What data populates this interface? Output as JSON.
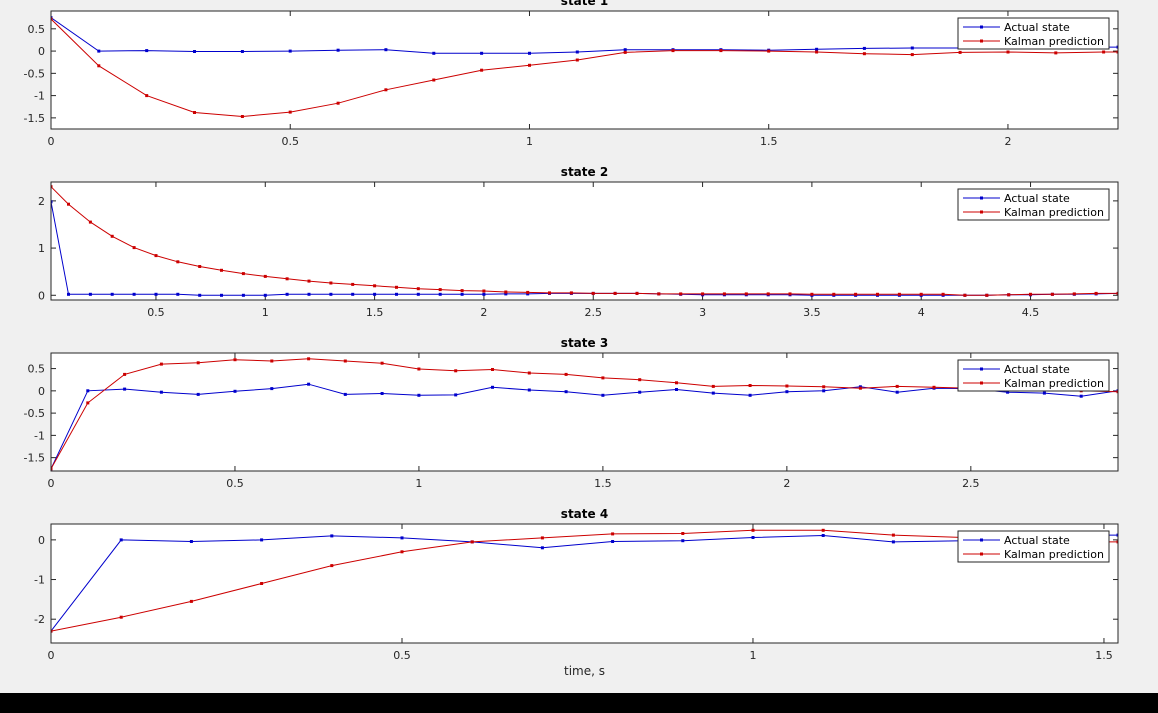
{
  "chart_data": [
    {
      "type": "line",
      "title": "state 1",
      "xlabel": "",
      "ylabel": "",
      "xlim": [
        0,
        2.23
      ],
      "ylim": [
        -1.75,
        0.9
      ],
      "xticks": [
        0,
        0.5,
        1,
        1.5,
        2
      ],
      "xtick_labels": [
        "0",
        "0.5",
        "1",
        "1.5",
        "2"
      ],
      "yticks": [
        0.5,
        0,
        -0.5,
        -1,
        -1.5
      ],
      "ytick_labels": [
        "0.5",
        "0",
        "-0.5",
        "-1",
        "-1.5"
      ],
      "legend": "top-right",
      "series": [
        {
          "name": "Actual state",
          "color": "#0000cc",
          "x": [
            0,
            0.1,
            0.2,
            0.3,
            0.4,
            0.5,
            0.6,
            0.7,
            0.8,
            0.9,
            1.0,
            1.1,
            1.2,
            1.3,
            1.4,
            1.5,
            1.6,
            1.7,
            1.8,
            1.9,
            2.0,
            2.1,
            2.2,
            2.23
          ],
          "y": [
            0.75,
            0.0,
            0.01,
            -0.01,
            -0.01,
            0.0,
            0.02,
            0.03,
            -0.05,
            -0.05,
            -0.05,
            -0.02,
            0.03,
            0.03,
            0.03,
            0.02,
            0.04,
            0.06,
            0.07,
            0.07,
            0.08,
            0.09,
            0.09,
            0.09
          ]
        },
        {
          "name": "Kalman prediction",
          "color": "#cc0000",
          "x": [
            0,
            0.1,
            0.2,
            0.3,
            0.4,
            0.5,
            0.6,
            0.7,
            0.8,
            0.9,
            1.0,
            1.1,
            1.2,
            1.3,
            1.4,
            1.5,
            1.6,
            1.7,
            1.8,
            1.9,
            2.0,
            2.1,
            2.2,
            2.23
          ],
          "y": [
            0.72,
            -0.33,
            -1.0,
            -1.38,
            -1.47,
            -1.37,
            -1.17,
            -0.87,
            -0.65,
            -0.43,
            -0.32,
            -0.2,
            -0.03,
            0.01,
            0.01,
            0.0,
            -0.02,
            -0.06,
            -0.08,
            -0.03,
            -0.02,
            -0.04,
            -0.02,
            -0.02
          ]
        }
      ]
    },
    {
      "type": "line",
      "title": "state 2",
      "xlabel": "",
      "ylabel": "",
      "xlim": [
        0.02,
        4.9
      ],
      "ylim": [
        -0.1,
        2.4
      ],
      "xticks": [
        0.5,
        1,
        1.5,
        2,
        2.5,
        3,
        3.5,
        4,
        4.5
      ],
      "xtick_labels": [
        "0.5",
        "1",
        "1.5",
        "2",
        "2.5",
        "3",
        "3.5",
        "4",
        "4.5"
      ],
      "yticks": [
        2,
        1,
        0
      ],
      "ytick_labels": [
        "2",
        "1",
        "0"
      ],
      "legend": "top-right",
      "series": [
        {
          "name": "Actual state",
          "color": "#0000cc",
          "x": [
            0.02,
            0.1,
            0.2,
            0.3,
            0.4,
            0.5,
            0.6,
            0.7,
            0.8,
            0.9,
            1.0,
            1.1,
            1.2,
            1.3,
            1.4,
            1.5,
            1.6,
            1.7,
            1.8,
            1.9,
            2.0,
            2.1,
            2.2,
            2.3,
            2.4,
            2.5,
            2.6,
            2.7,
            2.8,
            2.9,
            3.0,
            3.1,
            3.2,
            3.3,
            3.4,
            3.5,
            3.6,
            3.7,
            3.8,
            3.9,
            4.0,
            4.1,
            4.2,
            4.3,
            4.4,
            4.5,
            4.6,
            4.7,
            4.8,
            4.9
          ],
          "y": [
            1.98,
            0.02,
            0.02,
            0.02,
            0.02,
            0.02,
            0.02,
            0.0,
            0.0,
            0.0,
            0.0,
            0.02,
            0.02,
            0.02,
            0.02,
            0.02,
            0.02,
            0.02,
            0.02,
            0.02,
            0.02,
            0.03,
            0.03,
            0.04,
            0.04,
            0.04,
            0.04,
            0.04,
            0.03,
            0.02,
            0.01,
            0.01,
            0.01,
            0.01,
            0.01,
            0.0,
            0.0,
            0.0,
            0.0,
            0.0,
            0.0,
            0.0,
            0.0,
            0.0,
            0.01,
            0.01,
            0.02,
            0.02,
            0.03,
            0.04
          ]
        },
        {
          "name": "Kalman prediction",
          "color": "#cc0000",
          "x": [
            0.02,
            0.1,
            0.2,
            0.3,
            0.4,
            0.5,
            0.6,
            0.7,
            0.8,
            0.9,
            1.0,
            1.1,
            1.2,
            1.3,
            1.4,
            1.5,
            1.6,
            1.7,
            1.8,
            1.9,
            2.0,
            2.1,
            2.2,
            2.3,
            2.4,
            2.5,
            2.6,
            2.7,
            2.8,
            2.9,
            3.0,
            3.1,
            3.2,
            3.3,
            3.4,
            3.5,
            3.6,
            3.7,
            3.8,
            3.9,
            4.0,
            4.1,
            4.2,
            4.3,
            4.4,
            4.5,
            4.6,
            4.7,
            4.8,
            4.9
          ],
          "y": [
            2.3,
            1.93,
            1.55,
            1.25,
            1.01,
            0.84,
            0.71,
            0.61,
            0.53,
            0.46,
            0.4,
            0.35,
            0.3,
            0.26,
            0.23,
            0.2,
            0.17,
            0.14,
            0.12,
            0.1,
            0.09,
            0.07,
            0.06,
            0.05,
            0.05,
            0.04,
            0.04,
            0.04,
            0.03,
            0.03,
            0.03,
            0.03,
            0.03,
            0.03,
            0.03,
            0.02,
            0.02,
            0.02,
            0.02,
            0.02,
            0.02,
            0.02,
            0.0,
            0.0,
            0.01,
            0.02,
            0.02,
            0.03,
            0.04,
            0.04
          ]
        }
      ]
    },
    {
      "type": "line",
      "title": "state 3",
      "xlabel": "",
      "ylabel": "",
      "xlim": [
        0,
        2.9
      ],
      "ylim": [
        -1.8,
        0.85
      ],
      "xticks": [
        0,
        0.5,
        1,
        1.5,
        2,
        2.5
      ],
      "xtick_labels": [
        "0",
        "0.5",
        "1",
        "1.5",
        "2",
        "2.5"
      ],
      "yticks": [
        0.5,
        0,
        -0.5,
        -1,
        -1.5
      ],
      "ytick_labels": [
        "0.5",
        "0",
        "-0.5",
        "-1",
        "-1.5"
      ],
      "legend": "top-right",
      "series": [
        {
          "name": "Actual state",
          "color": "#0000cc",
          "x": [
            0,
            0.1,
            0.2,
            0.3,
            0.4,
            0.5,
            0.6,
            0.7,
            0.8,
            0.9,
            1.0,
            1.1,
            1.2,
            1.3,
            1.4,
            1.5,
            1.6,
            1.7,
            1.8,
            1.9,
            2.0,
            2.1,
            2.2,
            2.3,
            2.4,
            2.5,
            2.6,
            2.7,
            2.8,
            2.9
          ],
          "y": [
            -1.75,
            0.0,
            0.04,
            -0.03,
            -0.08,
            -0.01,
            0.05,
            0.15,
            -0.08,
            -0.06,
            -0.1,
            -0.09,
            0.08,
            0.02,
            -0.02,
            -0.1,
            -0.03,
            0.03,
            -0.05,
            -0.1,
            -0.02,
            0.0,
            0.09,
            -0.03,
            0.06,
            0.05,
            -0.03,
            -0.05,
            -0.12,
            0.0
          ]
        },
        {
          "name": "Kalman prediction",
          "color": "#cc0000",
          "x": [
            0,
            0.1,
            0.2,
            0.3,
            0.4,
            0.5,
            0.6,
            0.7,
            0.8,
            0.9,
            1.0,
            1.1,
            1.2,
            1.3,
            1.4,
            1.5,
            1.6,
            1.7,
            1.8,
            1.9,
            2.0,
            2.1,
            2.2,
            2.3,
            2.4,
            2.5,
            2.6,
            2.7,
            2.8,
            2.9
          ],
          "y": [
            -1.75,
            -0.27,
            0.37,
            0.6,
            0.63,
            0.7,
            0.67,
            0.72,
            0.67,
            0.62,
            0.49,
            0.45,
            0.48,
            0.4,
            0.37,
            0.29,
            0.25,
            0.18,
            0.1,
            0.12,
            0.11,
            0.09,
            0.06,
            0.1,
            0.08,
            0.06,
            0.04,
            0.02,
            0.0,
            -0.02
          ]
        }
      ]
    },
    {
      "type": "line",
      "title": "state 4",
      "xlabel": "time, s",
      "ylabel": "",
      "xlim": [
        0,
        1.52
      ],
      "ylim": [
        -2.6,
        0.4
      ],
      "xticks": [
        0,
        0.5,
        1,
        1.5
      ],
      "xtick_labels": [
        "0",
        "0.5",
        "1",
        "1.5"
      ],
      "yticks": [
        0,
        -1,
        -2
      ],
      "ytick_labels": [
        "0",
        "-1",
        "-2"
      ],
      "legend": "top-right",
      "series": [
        {
          "name": "Actual state",
          "color": "#0000cc",
          "x": [
            0,
            0.1,
            0.2,
            0.3,
            0.4,
            0.5,
            0.6,
            0.7,
            0.8,
            0.9,
            1.0,
            1.1,
            1.2,
            1.3,
            1.4,
            1.5,
            1.52
          ],
          "y": [
            -2.3,
            0.0,
            -0.04,
            0.0,
            0.1,
            0.05,
            -0.05,
            -0.2,
            -0.04,
            -0.02,
            0.06,
            0.11,
            -0.05,
            -0.02,
            0.05,
            0.12,
            0.12
          ]
        },
        {
          "name": "Kalman prediction",
          "color": "#cc0000",
          "x": [
            0,
            0.1,
            0.2,
            0.3,
            0.4,
            0.5,
            0.6,
            0.7,
            0.8,
            0.9,
            1.0,
            1.1,
            1.2,
            1.3,
            1.4,
            1.5,
            1.52
          ],
          "y": [
            -2.3,
            -1.95,
            -1.55,
            -1.1,
            -0.65,
            -0.3,
            -0.05,
            0.05,
            0.15,
            0.16,
            0.24,
            0.24,
            0.12,
            0.06,
            -0.03,
            -0.05,
            -0.05
          ]
        }
      ]
    }
  ]
}
